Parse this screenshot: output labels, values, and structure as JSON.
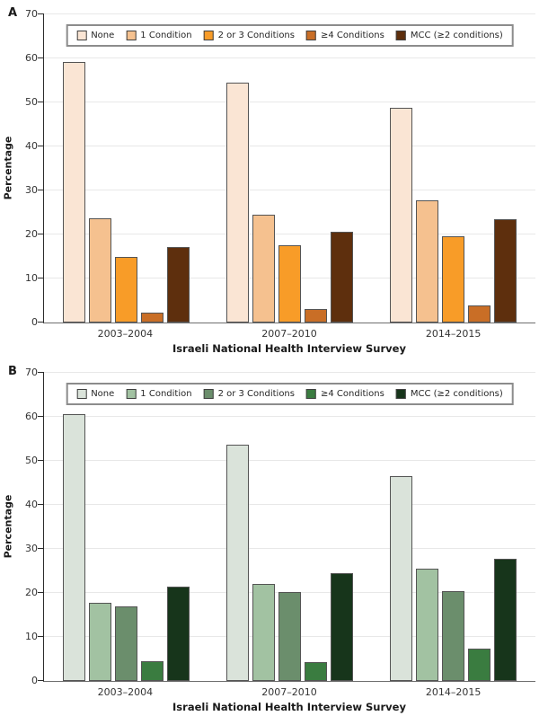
{
  "chart_data": [
    {
      "type": "bar",
      "panel": "A",
      "categories": [
        "2003–2004",
        "2007–2010",
        "2014–2015"
      ],
      "series": [
        {
          "name": "None",
          "color": "#fae5d4",
          "values": [
            59.2,
            54.4,
            48.7
          ]
        },
        {
          "name": "1 Condition",
          "color": "#f5c18f",
          "values": [
            23.7,
            24.4,
            27.8
          ]
        },
        {
          "name": "2 or 3 Conditions",
          "color": "#f89c28",
          "values": [
            14.9,
            17.6,
            19.5
          ]
        },
        {
          "name": "≥4 Conditions",
          "color": "#c96e26",
          "values": [
            2.3,
            3.1,
            3.9
          ]
        },
        {
          "name": "MCC (≥2 conditions)",
          "color": "#5e2f0d",
          "values": [
            17.1,
            20.7,
            23.5
          ]
        }
      ],
      "xlabel": "Israeli National Health Interview Survey",
      "ylabel": "Percentage",
      "ylim": [
        0,
        70
      ],
      "ytick_step": 10,
      "yticks": [
        0,
        10,
        20,
        30,
        40,
        50,
        60,
        70
      ],
      "grid": true,
      "legend_position": "top-center"
    },
    {
      "type": "bar",
      "panel": "B",
      "categories": [
        "2003–2004",
        "2007–2010",
        "2014–2015"
      ],
      "series": [
        {
          "name": "None",
          "color": "#dae3da",
          "values": [
            60.7,
            53.6,
            46.5
          ]
        },
        {
          "name": "1 Condition",
          "color": "#a2c2a2",
          "values": [
            17.8,
            22.0,
            25.6
          ]
        },
        {
          "name": "2 or 3 Conditions",
          "color": "#6b8e6c",
          "values": [
            17.0,
            20.3,
            20.4
          ]
        },
        {
          "name": "≥4 Conditions",
          "color": "#3a7c40",
          "values": [
            4.5,
            4.2,
            7.4
          ]
        },
        {
          "name": "MCC (≥2 conditions)",
          "color": "#17351b",
          "values": [
            21.5,
            24.5,
            27.7
          ]
        }
      ],
      "xlabel": "Israeli National Health Interview Survey",
      "ylabel": "Percentage",
      "ylim": [
        0,
        70
      ],
      "ytick_step": 10,
      "yticks": [
        0,
        10,
        20,
        30,
        40,
        50,
        60,
        70
      ],
      "grid": true,
      "legend_position": "top-center"
    }
  ]
}
